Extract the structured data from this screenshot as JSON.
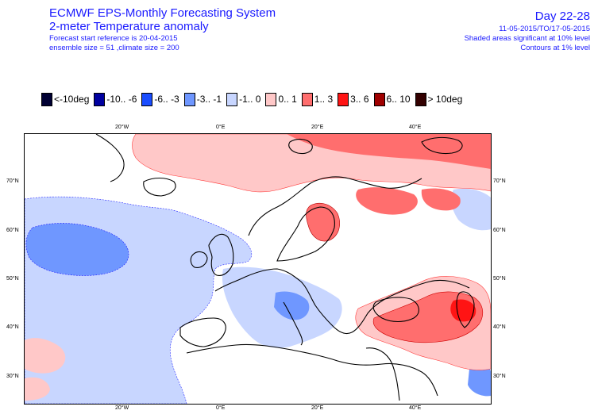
{
  "header": {
    "title": "ECMWF EPS-Monthly Forecasting System",
    "subtitle": "2-meter Temperature anomaly",
    "forecast_ref": "Forecast start reference is 20-04-2015",
    "ensemble": "ensemble size = 51 ,climate size = 200",
    "day_range": "Day 22-28",
    "date_range": "11-05-2015/TO/17-05-2015",
    "shaded_note": "Shaded areas significant at 10% level",
    "contour_note": "Contours at 1% level"
  },
  "legend": [
    {
      "label": "<-10deg",
      "color": "#000033"
    },
    {
      "label": "-10.. -6",
      "color": "#0000a0"
    },
    {
      "label": "-6.. -3",
      "color": "#1a4dff"
    },
    {
      "label": "-3.. -1",
      "color": "#6f97ff"
    },
    {
      "label": "-1.. 0",
      "color": "#c8d6ff"
    },
    {
      "label": "0.. 1",
      "color": "#ffc8c8"
    },
    {
      "label": "1.. 3",
      "color": "#ff6e6e"
    },
    {
      "label": "3.. 6",
      "color": "#ff1414"
    },
    {
      "label": "6.. 10",
      "color": "#a00000"
    },
    {
      "label": "> 10deg",
      "color": "#330000"
    }
  ],
  "map": {
    "top_ticks": [
      "20°W",
      "0°E",
      "20°E",
      "40°E"
    ],
    "bottom_ticks": [
      "20°W",
      "0°E",
      "20°E",
      "40°E"
    ],
    "left_ticks": [
      "70°N",
      "60°N",
      "50°N",
      "40°N",
      "30°N"
    ],
    "right_ticks": [
      "70°N",
      "60°N",
      "50°N",
      "40°N",
      "30°N"
    ]
  }
}
